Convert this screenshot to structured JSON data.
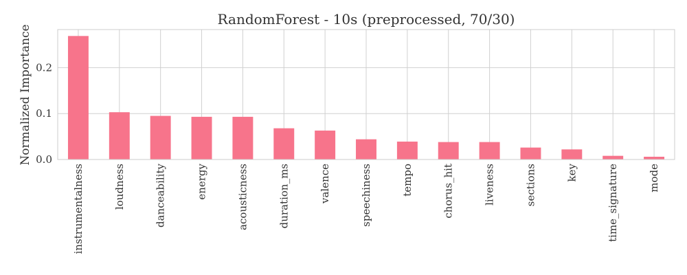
{
  "chart_data": {
    "type": "bar",
    "title": "RandomForest - 10s (preprocessed, 70/30)",
    "xlabel": "",
    "ylabel": "Normalized Importance",
    "categories": [
      "instrumentalness",
      "loudness",
      "danceability",
      "energy",
      "acousticness",
      "duration_ms",
      "valence",
      "speechiness",
      "tempo",
      "chorus_hit",
      "liveness",
      "sections",
      "key",
      "time_signature",
      "mode"
    ],
    "values": [
      0.269,
      0.103,
      0.095,
      0.093,
      0.093,
      0.068,
      0.063,
      0.044,
      0.039,
      0.038,
      0.038,
      0.026,
      0.022,
      0.008,
      0.006
    ],
    "ylim": [
      0,
      0.283
    ],
    "yticks": [
      0.0,
      0.1,
      0.2
    ],
    "ytick_labels": [
      "0.0",
      "0.1",
      "0.2"
    ],
    "grid": true,
    "bar_color": "#f7748b"
  }
}
